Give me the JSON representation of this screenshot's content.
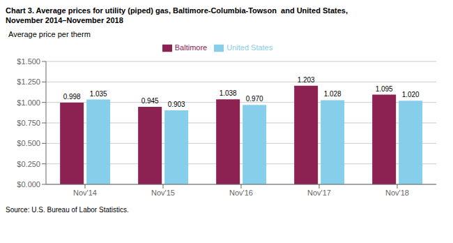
{
  "chart_data": {
    "type": "bar",
    "title": "Chart 3. Average prices for utility (piped) gas, Baltimore-Columbia-Towson  and United States,\nNovember 2014–November 2018",
    "ylabel": "Average price per therm",
    "source": "Source: U.S. Bureau of Labor Statistics.",
    "categories": [
      "Nov'14",
      "Nov'15",
      "Nov'16",
      "Nov'17",
      "Nov'18"
    ],
    "series": [
      {
        "name": "Baltimore",
        "color": "#8B2252",
        "values": [
          0.998,
          0.945,
          1.038,
          1.203,
          1.095
        ],
        "value_labels": [
          "0.998",
          "0.945",
          "1.038",
          "1.203",
          "1.095"
        ]
      },
      {
        "name": "United States",
        "color": "#87CEEB",
        "values": [
          1.035,
          0.903,
          0.97,
          1.028,
          1.02
        ],
        "value_labels": [
          "1.035",
          "0.903",
          "0.970",
          "1.028",
          "1.020"
        ]
      }
    ],
    "ylim": [
      0.0,
      1.5
    ],
    "yticks": [
      {
        "value": 0.0,
        "label": "$0.000"
      },
      {
        "value": 0.25,
        "label": "$0.250"
      },
      {
        "value": 0.5,
        "label": "$0.500"
      },
      {
        "value": 0.75,
        "label": "$0.750"
      },
      {
        "value": 1.0,
        "label": "$1.000"
      },
      {
        "value": 1.25,
        "label": "$1.250"
      },
      {
        "value": 1.5,
        "label": "$1.500"
      }
    ],
    "grid": true,
    "legend": "top",
    "data_labels": true
  }
}
